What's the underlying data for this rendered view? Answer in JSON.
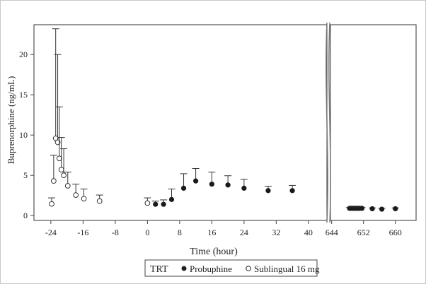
{
  "chart_data": {
    "type": "scatter",
    "title": "",
    "xlabel": "Time (hour)",
    "ylabel": "Buprenorphine (ng/mL)",
    "ylim": [
      -0.6,
      23.7
    ],
    "yticks": [
      0,
      5,
      10,
      15,
      20
    ],
    "panels": [
      {
        "xlim": [
          -28.2,
          44.6
        ],
        "xticks": [
          -24,
          -16,
          -8,
          0,
          8,
          16,
          24,
          32,
          40
        ]
      },
      {
        "xlim": [
          643.7,
          665.2
        ],
        "xticks": [
          644,
          652,
          660
        ]
      }
    ],
    "axis_break": true,
    "legend": {
      "title": "TRT",
      "placement": "bottom-center"
    },
    "series": [
      {
        "name": "Probuphine",
        "marker": "filled-circle",
        "x": [
          2,
          4,
          6,
          9,
          12,
          16,
          20,
          24,
          30,
          36,
          648.5,
          649,
          649.5,
          650,
          650.5,
          651,
          651.6,
          654.2,
          656.6,
          660
        ],
        "y": [
          1.4,
          1.4,
          2.0,
          3.4,
          4.3,
          3.9,
          3.8,
          3.4,
          3.1,
          3.1,
          0.9,
          0.9,
          0.9,
          0.9,
          0.9,
          0.9,
          0.9,
          0.85,
          0.8,
          0.85
        ],
        "upper": [
          1.8,
          1.95,
          3.3,
          5.2,
          5.85,
          5.4,
          4.95,
          4.5,
          3.65,
          3.75,
          1.0,
          1.0,
          1.0,
          1.0,
          1.0,
          1.0,
          1.0,
          0.95,
          0.9,
          0.95
        ]
      },
      {
        "name": "Sublingual 16 mg",
        "marker": "open-circle",
        "x": [
          -23.8,
          -23.3,
          -22.8,
          -22.3,
          -21.9,
          -21.4,
          -20.8,
          -19.8,
          -17.8,
          -15.8,
          -11.9,
          0
        ],
        "y": [
          1.45,
          4.3,
          9.6,
          9.1,
          7.1,
          5.7,
          5.0,
          3.7,
          2.55,
          2.1,
          1.8,
          1.55
        ],
        "upper": [
          2.2,
          7.5,
          23.2,
          20.0,
          13.5,
          9.7,
          8.3,
          5.4,
          3.9,
          3.3,
          2.55,
          2.2
        ]
      }
    ]
  }
}
